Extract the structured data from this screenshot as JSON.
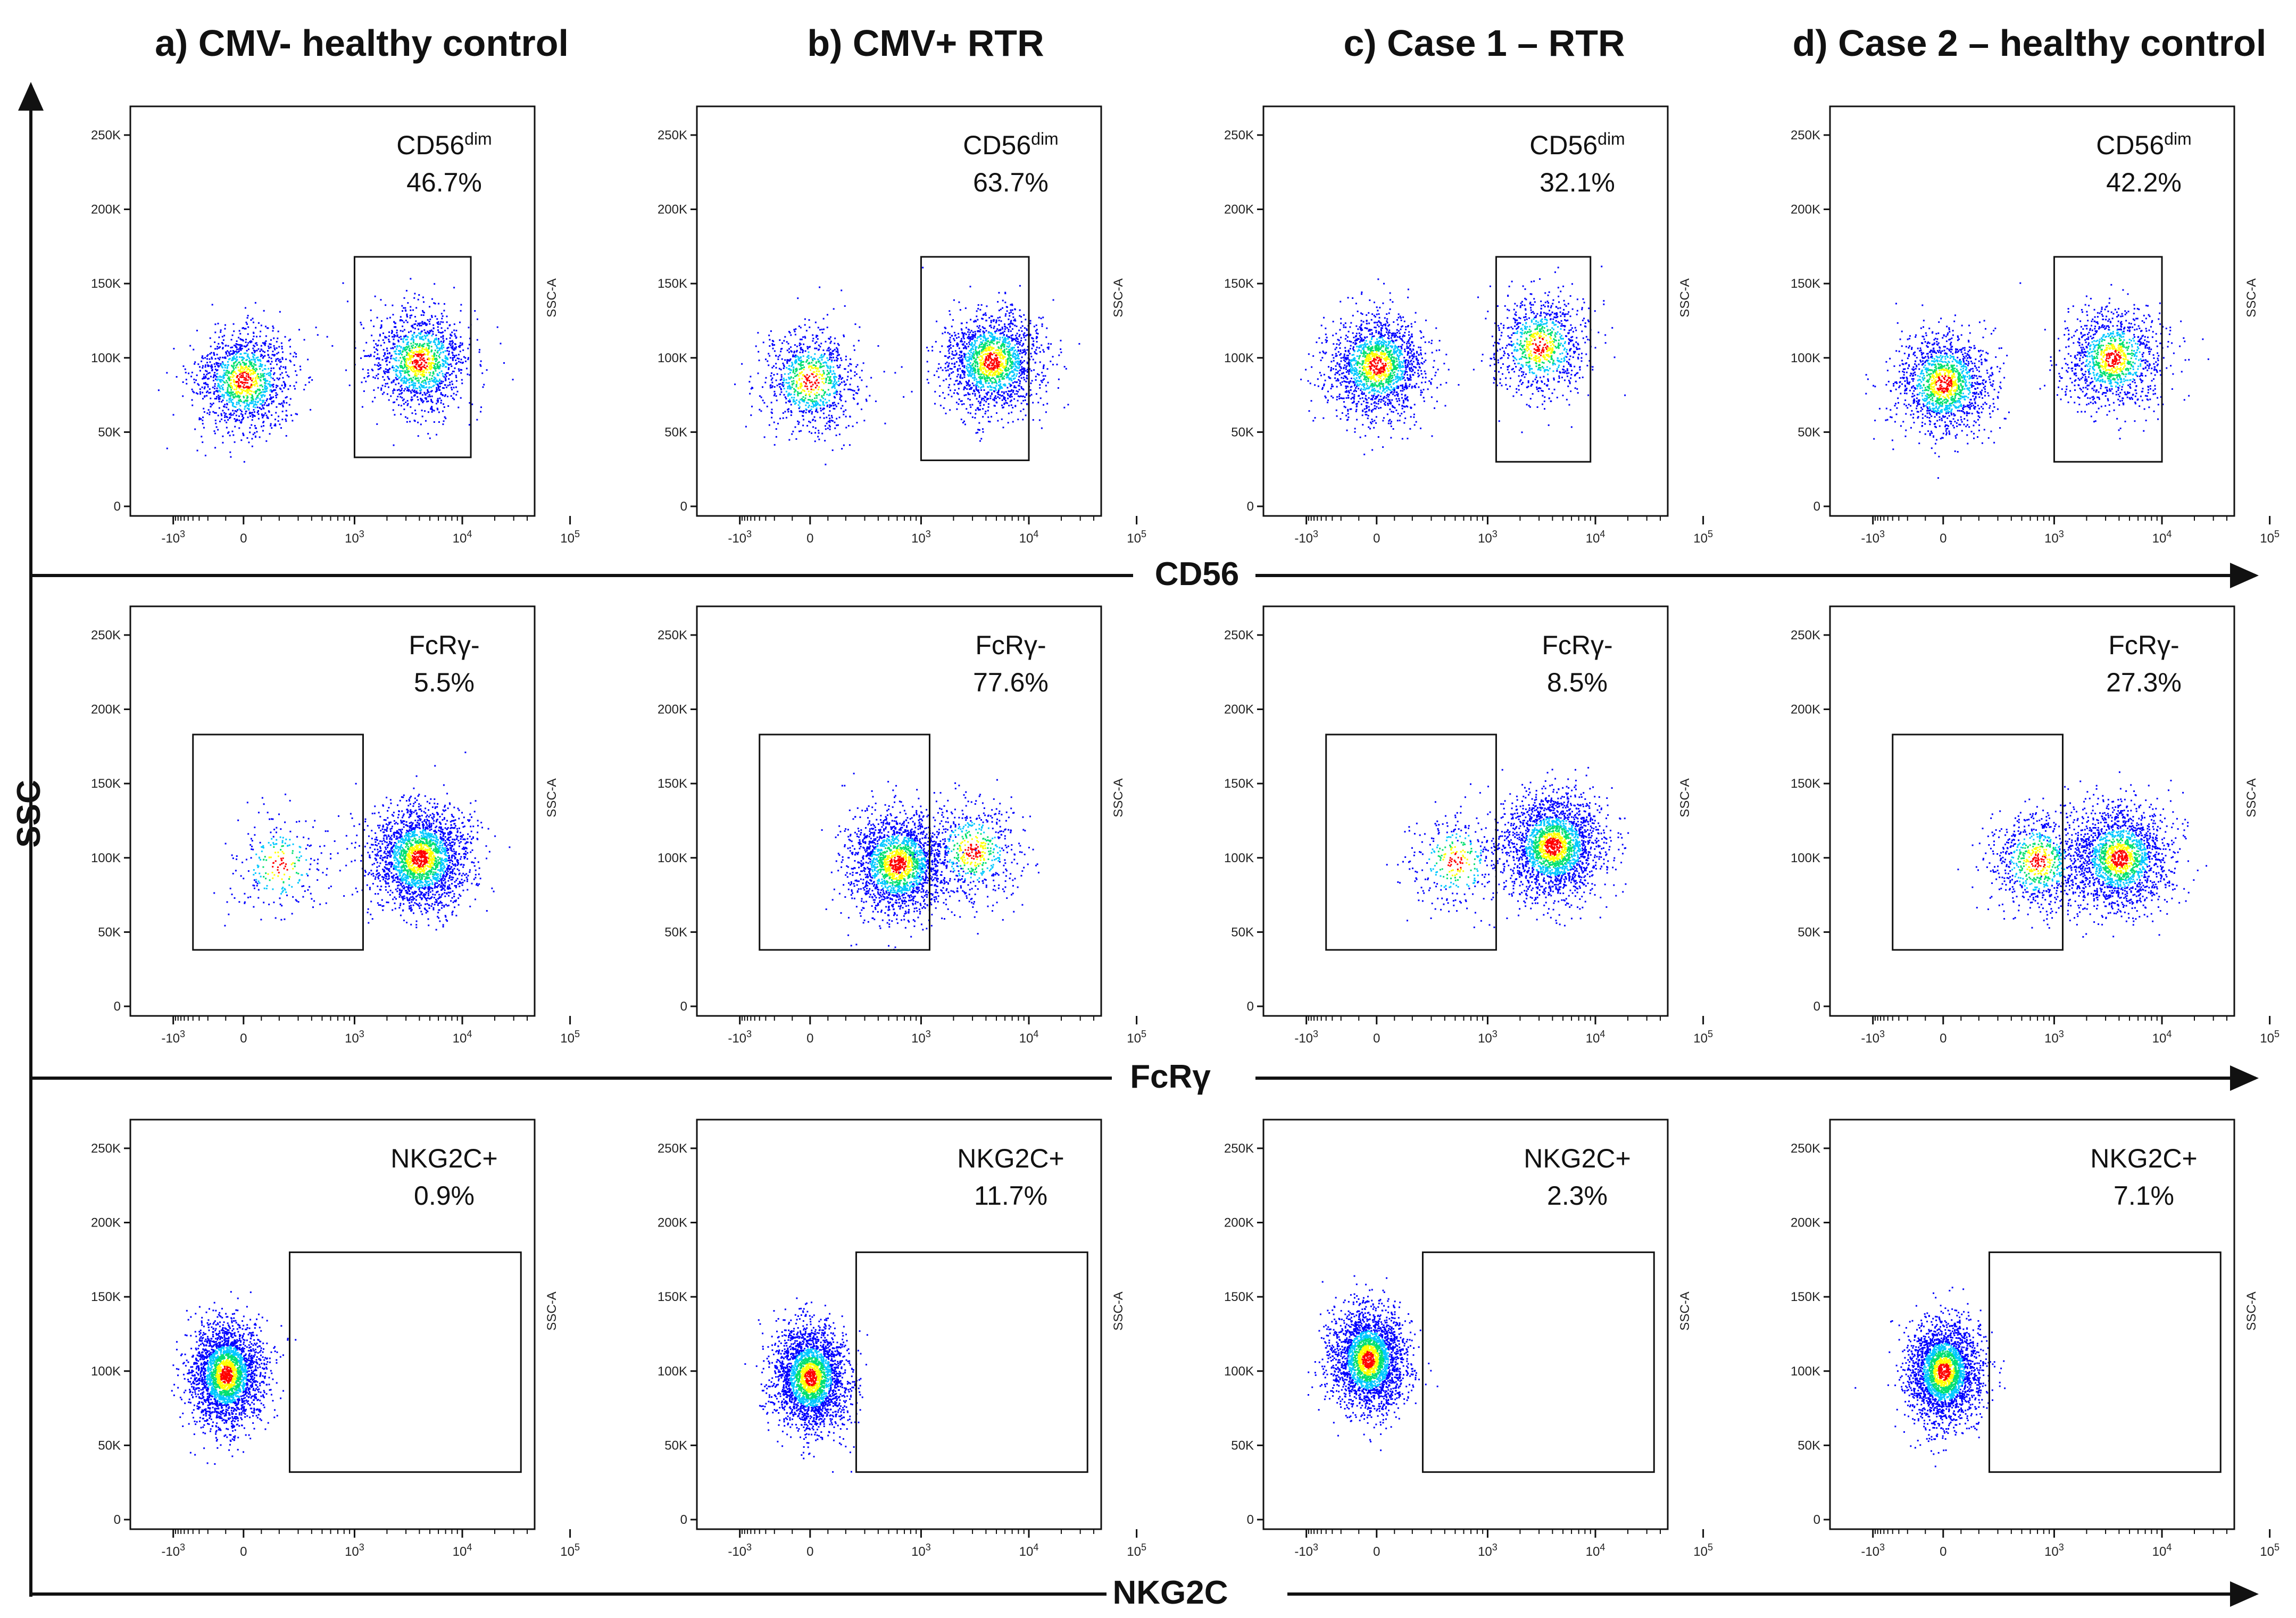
{
  "columns": [
    {
      "title": "a) CMV- healthy control"
    },
    {
      "title": "b) CMV+ RTR"
    },
    {
      "title": "c) Case 1 – RTR"
    },
    {
      "title": "d) Case 2 – healthy control"
    }
  ],
  "y_axis_title": "SSC",
  "rows": [
    {
      "axis_title": "CD56"
    },
    {
      "axis_title": "FcRγ"
    },
    {
      "axis_title": "NKG2C"
    }
  ],
  "colors": {
    "low": "#0000ff",
    "mid_low": "#00c8ff",
    "mid": "#00e070",
    "mid_high": "#ffff00",
    "high": "#ff0000",
    "axes": "#111111"
  },
  "chart_data": [
    {
      "type": "scatter",
      "column": "a) CMV- healthy control",
      "marker": "CD56",
      "x_scale": "biexponential",
      "x_ticks": [
        "-10^3",
        "0",
        "10^3",
        "10^4",
        "10^5"
      ],
      "y_label": "SSC-A",
      "y_ticks": [
        "0",
        "50K",
        "100K",
        "150K",
        "200K",
        "250K"
      ],
      "ylim": [
        0,
        262144
      ],
      "gate": {
        "name": "CD56",
        "superscript": "dim",
        "percent": "46.7%",
        "x_range": [
          1000,
          12000
        ],
        "y_range": [
          33000,
          168000
        ]
      },
      "populations": [
        {
          "x_center": 0,
          "y_center": 85000,
          "weight": 0.5
        },
        {
          "x_center": 4000,
          "y_center": 98000,
          "weight": 0.5
        }
      ]
    },
    {
      "type": "scatter",
      "column": "b) CMV+ RTR",
      "marker": "CD56",
      "x_scale": "biexponential",
      "x_ticks": [
        "-10^3",
        "0",
        "10^3",
        "10^4",
        "10^5"
      ],
      "y_label": "SSC-A",
      "y_ticks": [
        "0",
        "50K",
        "100K",
        "150K",
        "200K",
        "250K"
      ],
      "ylim": [
        0,
        262144
      ],
      "gate": {
        "name": "CD56",
        "superscript": "dim",
        "percent": "63.7%",
        "x_range": [
          1000,
          10000
        ],
        "y_range": [
          31000,
          168000
        ]
      },
      "populations": [
        {
          "x_center": 0,
          "y_center": 85000,
          "weight": 0.35
        },
        {
          "x_center": 4500,
          "y_center": 98000,
          "weight": 0.65
        }
      ]
    },
    {
      "type": "scatter",
      "column": "c) Case 1 – RTR",
      "marker": "CD56",
      "x_scale": "biexponential",
      "x_ticks": [
        "-10^3",
        "0",
        "10^3",
        "10^4",
        "10^5"
      ],
      "y_label": "SSC-A",
      "y_ticks": [
        "0",
        "50K",
        "100K",
        "150K",
        "200K",
        "250K"
      ],
      "ylim": [
        0,
        262144
      ],
      "gate": {
        "name": "CD56",
        "superscript": "dim",
        "percent": "32.1%",
        "x_range": [
          1200,
          9000
        ],
        "y_range": [
          30000,
          168000
        ]
      },
      "populations": [
        {
          "x_center": 0,
          "y_center": 95000,
          "weight": 0.65
        },
        {
          "x_center": 3000,
          "y_center": 108000,
          "weight": 0.35
        }
      ]
    },
    {
      "type": "scatter",
      "column": "d) Case 2 – healthy control",
      "marker": "CD56",
      "x_scale": "biexponential",
      "x_ticks": [
        "-10^3",
        "0",
        "10^3",
        "10^4",
        "10^5"
      ],
      "y_label": "SSC-A",
      "y_ticks": [
        "0",
        "50K",
        "100K",
        "150K",
        "200K",
        "250K"
      ],
      "ylim": [
        0,
        262144
      ],
      "gate": {
        "name": "CD56",
        "superscript": "dim",
        "percent": "42.2%",
        "x_range": [
          1000,
          10000
        ],
        "y_range": [
          30000,
          168000
        ]
      },
      "populations": [
        {
          "x_center": 0,
          "y_center": 83000,
          "weight": 0.55
        },
        {
          "x_center": 3500,
          "y_center": 100000,
          "weight": 0.45
        }
      ]
    },
    {
      "type": "scatter",
      "column": "a) CMV- healthy control",
      "marker": "FcRγ",
      "x_scale": "biexponential",
      "x_ticks": [
        "-10^3",
        "0",
        "10^3",
        "10^4",
        "10^5"
      ],
      "y_label": "SSC-A",
      "y_ticks": [
        "0",
        "50K",
        "100K",
        "150K",
        "200K",
        "250K"
      ],
      "ylim": [
        0,
        262144
      ],
      "gate": {
        "name": "FcRγ-",
        "superscript": "",
        "percent": "5.5%",
        "x_range": [
          -400,
          1200
        ],
        "y_range": [
          38000,
          183000
        ]
      },
      "populations": [
        {
          "x_center": 200,
          "y_center": 95000,
          "weight": 0.1
        },
        {
          "x_center": 4000,
          "y_center": 100000,
          "weight": 0.9
        }
      ]
    },
    {
      "type": "scatter",
      "column": "b) CMV+ RTR",
      "marker": "FcRγ",
      "x_scale": "biexponential",
      "x_ticks": [
        "-10^3",
        "0",
        "10^3",
        "10^4",
        "10^5"
      ],
      "y_label": "SSC-A",
      "y_ticks": [
        "0",
        "50K",
        "100K",
        "150K",
        "200K",
        "250K"
      ],
      "ylim": [
        0,
        262144
      ],
      "gate": {
        "name": "FcRγ-",
        "superscript": "",
        "percent": "77.6%",
        "x_range": [
          -400,
          1200
        ],
        "y_range": [
          38000,
          183000
        ]
      },
      "populations": [
        {
          "x_center": 600,
          "y_center": 96000,
          "weight": 0.78
        },
        {
          "x_center": 3000,
          "y_center": 105000,
          "weight": 0.22
        }
      ]
    },
    {
      "type": "scatter",
      "column": "c) Case 1 – RTR",
      "marker": "FcRγ",
      "x_scale": "biexponential",
      "x_ticks": [
        "-10^3",
        "0",
        "10^3",
        "10^4",
        "10^5"
      ],
      "y_label": "SSC-A",
      "y_ticks": [
        "0",
        "50K",
        "100K",
        "150K",
        "200K",
        "250K"
      ],
      "ylim": [
        0,
        262144
      ],
      "gate": {
        "name": "FcRγ-",
        "superscript": "",
        "percent": "8.5%",
        "x_range": [
          -400,
          1200
        ],
        "y_range": [
          38000,
          183000
        ]
      },
      "populations": [
        {
          "x_center": 500,
          "y_center": 98000,
          "weight": 0.12
        },
        {
          "x_center": 4000,
          "y_center": 108000,
          "weight": 0.88
        }
      ]
    },
    {
      "type": "scatter",
      "column": "d) Case 2 – healthy control",
      "marker": "FcRγ",
      "x_scale": "biexponential",
      "x_ticks": [
        "-10^3",
        "0",
        "10^3",
        "10^4",
        "10^5"
      ],
      "y_label": "SSC-A",
      "y_ticks": [
        "0",
        "50K",
        "100K",
        "150K",
        "200K",
        "250K"
      ],
      "ylim": [
        0,
        262144
      ],
      "gate": {
        "name": "FcRγ-",
        "superscript": "",
        "percent": "27.3%",
        "x_range": [
          -400,
          1200
        ],
        "y_range": [
          38000,
          183000
        ]
      },
      "populations": [
        {
          "x_center": 700,
          "y_center": 98000,
          "weight": 0.3
        },
        {
          "x_center": 4000,
          "y_center": 100000,
          "weight": 0.7
        }
      ]
    },
    {
      "type": "scatter",
      "column": "a) CMV- healthy control",
      "marker": "NKG2C",
      "x_scale": "biexponential",
      "x_ticks": [
        "-10^3",
        "0",
        "10^3",
        "10^4",
        "10^5"
      ],
      "y_label": "SSC-A",
      "y_ticks": [
        "0",
        "50K",
        "100K",
        "150K",
        "200K",
        "250K"
      ],
      "ylim": [
        0,
        262144
      ],
      "gate": {
        "name": "NKG2C+",
        "superscript": "",
        "percent": "0.9%",
        "x_range": [
          250,
          35000
        ],
        "y_range": [
          32000,
          180000
        ]
      },
      "populations": [
        {
          "x_center": -100,
          "y_center": 98000,
          "weight": 1.0
        }
      ]
    },
    {
      "type": "scatter",
      "column": "b) CMV+ RTR",
      "marker": "NKG2C",
      "x_scale": "biexponential",
      "x_ticks": [
        "-10^3",
        "0",
        "10^3",
        "10^4",
        "10^5"
      ],
      "y_label": "SSC-A",
      "y_ticks": [
        "0",
        "50K",
        "100K",
        "150K",
        "200K",
        "250K"
      ],
      "ylim": [
        0,
        262144
      ],
      "gate": {
        "name": "NKG2C+",
        "superscript": "",
        "percent": "11.7%",
        "x_range": [
          250,
          35000
        ],
        "y_range": [
          32000,
          180000
        ]
      },
      "populations": [
        {
          "x_center": 0,
          "y_center": 96000,
          "weight": 1.0
        }
      ]
    },
    {
      "type": "scatter",
      "column": "c) Case 1 – RTR",
      "marker": "NKG2C",
      "x_scale": "biexponential",
      "x_ticks": [
        "-10^3",
        "0",
        "10^3",
        "10^4",
        "10^5"
      ],
      "y_label": "SSC-A",
      "y_ticks": [
        "0",
        "50K",
        "100K",
        "150K",
        "200K",
        "250K"
      ],
      "ylim": [
        0,
        262144
      ],
      "gate": {
        "name": "NKG2C+",
        "superscript": "",
        "percent": "2.3%",
        "x_range": [
          250,
          35000
        ],
        "y_range": [
          32000,
          180000
        ]
      },
      "populations": [
        {
          "x_center": -50,
          "y_center": 108000,
          "weight": 1.0
        }
      ]
    },
    {
      "type": "scatter",
      "column": "d) Case 2 – healthy control",
      "marker": "NKG2C",
      "x_scale": "biexponential",
      "x_ticks": [
        "-10^3",
        "0",
        "10^3",
        "10^4",
        "10^5"
      ],
      "y_label": "SSC-A",
      "y_ticks": [
        "0",
        "50K",
        "100K",
        "150K",
        "200K",
        "250K"
      ],
      "ylim": [
        0,
        262144
      ],
      "gate": {
        "name": "NKG2C+",
        "superscript": "",
        "percent": "7.1%",
        "x_range": [
          250,
          35000
        ],
        "y_range": [
          32000,
          180000
        ]
      },
      "populations": [
        {
          "x_center": 0,
          "y_center": 100000,
          "weight": 1.0
        }
      ]
    }
  ]
}
